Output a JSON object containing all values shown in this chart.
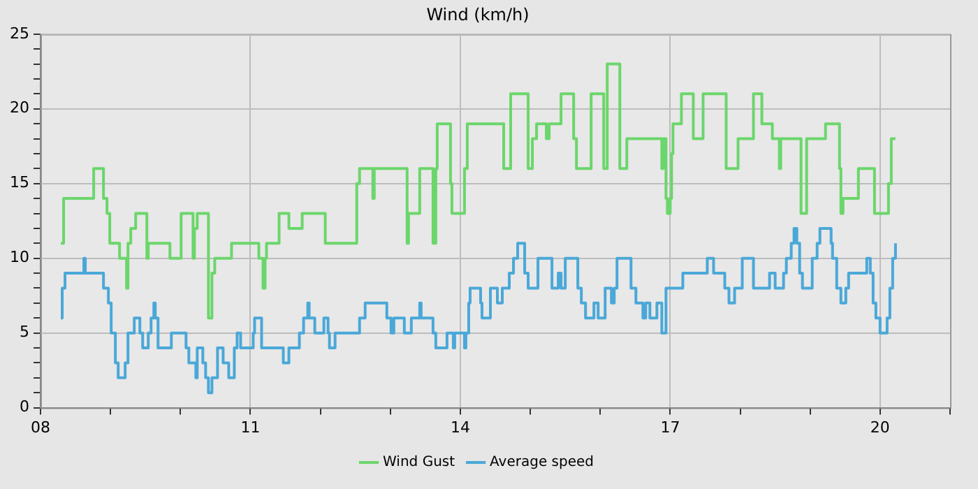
{
  "chart_data": {
    "type": "step",
    "title": "Wind (km/h)",
    "xlim": [
      8,
      21
    ],
    "xticks": [
      {
        "value": 8,
        "label": "08"
      },
      {
        "value": 9,
        "label": null
      },
      {
        "value": 10,
        "label": null
      },
      {
        "value": 11,
        "label": "11"
      },
      {
        "value": 12,
        "label": null
      },
      {
        "value": 13,
        "label": null
      },
      {
        "value": 14,
        "label": "14"
      },
      {
        "value": 15,
        "label": null
      },
      {
        "value": 16,
        "label": null
      },
      {
        "value": 17,
        "label": "17"
      },
      {
        "value": 18,
        "label": null
      },
      {
        "value": 19,
        "label": null
      },
      {
        "value": 20,
        "label": "20"
      },
      {
        "value": 21,
        "label": null
      }
    ],
    "ylim": [
      0,
      25
    ],
    "yticks": [
      0,
      {
        "value": 1,
        "label": null
      },
      {
        "value": 2,
        "label": null
      },
      {
        "value": 3,
        "label": null
      },
      {
        "value": 4,
        "label": null
      },
      5,
      {
        "value": 6,
        "label": null
      },
      {
        "value": 7,
        "label": null
      },
      {
        "value": 8,
        "label": null
      },
      {
        "value": 9,
        "label": null
      },
      10,
      {
        "value": 11,
        "label": null
      },
      {
        "value": 12,
        "label": null
      },
      {
        "value": 13,
        "label": null
      },
      {
        "value": 14,
        "label": null
      },
      15,
      {
        "value": 16,
        "label": null
      },
      {
        "value": 17,
        "label": null
      },
      {
        "value": 18,
        "label": null
      },
      {
        "value": 19,
        "label": null
      },
      20,
      {
        "value": 21,
        "label": null
      },
      {
        "value": 22,
        "label": null
      },
      {
        "value": 23,
        "label": null
      },
      {
        "value": 24,
        "label": null
      },
      25
    ],
    "grid": true,
    "legend": "bottom",
    "marker": "none",
    "line_style": "solid",
    "series": [
      {
        "name": "Wind Gust",
        "color": "#6bd66b",
        "x": [
          8.29,
          8.33,
          8.76,
          8.9,
          8.95,
          8.99,
          9.13,
          9.23,
          9.25,
          9.29,
          9.36,
          9.52,
          9.54,
          9.85,
          10.01,
          10.18,
          10.2,
          10.24,
          10.4,
          10.45,
          10.49,
          10.73,
          11.12,
          11.18,
          11.21,
          11.23,
          11.41,
          11.55,
          11.74,
          12.07,
          12.52,
          12.56,
          12.75,
          12.77,
          13.24,
          13.26,
          13.42,
          13.61,
          13.65,
          13.67,
          13.86,
          13.88,
          14.06,
          14.1,
          14.62,
          14.72,
          14.97,
          15.03,
          15.09,
          15.23,
          15.27,
          15.44,
          15.62,
          15.66,
          15.87,
          16.05,
          16.1,
          16.28,
          16.38,
          16.88,
          16.9,
          16.94,
          16.96,
          17.0,
          17.02,
          17.04,
          17.16,
          17.33,
          17.47,
          17.8,
          17.97,
          18.19,
          18.31,
          18.46,
          18.56,
          18.58,
          18.87,
          18.95,
          19.22,
          19.42,
          19.44,
          19.47,
          19.69,
          19.92,
          20.12,
          20.16,
          20.22
        ],
        "values": [
          11,
          14,
          16,
          14,
          13,
          11,
          10,
          8,
          11,
          12,
          13,
          10,
          11,
          10,
          13,
          10,
          12,
          13,
          6,
          9,
          10,
          11,
          10,
          8,
          10,
          11,
          13,
          12,
          13,
          11,
          15,
          16,
          14,
          16,
          11,
          13,
          16,
          11,
          16,
          19,
          15,
          13,
          16,
          19,
          16,
          21,
          16,
          18,
          19,
          18,
          19,
          21,
          18,
          16,
          21,
          16,
          23,
          16,
          18,
          16,
          18,
          14,
          13,
          14,
          17,
          19,
          21,
          18,
          21,
          16,
          18,
          21,
          19,
          18,
          16,
          18,
          13,
          18,
          19,
          16,
          13,
          14,
          16,
          13,
          15,
          18,
          18
        ]
      },
      {
        "name": "Average speed",
        "color": "#4aa8d8",
        "x": [
          8.29,
          8.31,
          8.35,
          8.62,
          8.64,
          8.9,
          8.97,
          9.01,
          9.07,
          9.11,
          9.21,
          9.25,
          9.34,
          9.42,
          9.46,
          9.54,
          9.58,
          9.62,
          9.64,
          9.68,
          9.87,
          10.08,
          10.12,
          10.22,
          10.24,
          10.32,
          10.36,
          10.4,
          10.45,
          10.53,
          10.61,
          10.69,
          10.77,
          10.81,
          10.86,
          11.04,
          11.06,
          11.16,
          11.47,
          11.55,
          11.7,
          11.76,
          11.82,
          11.84,
          11.92,
          12.05,
          12.11,
          12.13,
          12.21,
          12.56,
          12.64,
          12.95,
          13.01,
          13.05,
          13.2,
          13.3,
          13.42,
          13.44,
          13.61,
          13.65,
          13.81,
          13.9,
          13.92,
          14.06,
          14.08,
          14.12,
          14.14,
          14.29,
          14.31,
          14.43,
          14.53,
          14.6,
          14.7,
          14.76,
          14.82,
          14.92,
          14.97,
          15.11,
          15.31,
          15.4,
          15.44,
          15.5,
          15.68,
          15.73,
          15.79,
          15.91,
          15.97,
          16.07,
          16.16,
          16.2,
          16.24,
          16.44,
          16.51,
          16.61,
          16.65,
          16.71,
          16.81,
          16.88,
          16.94,
          17.18,
          17.53,
          17.62,
          17.78,
          17.84,
          17.92,
          18.03,
          18.19,
          18.42,
          18.5,
          18.62,
          18.66,
          18.73,
          18.77,
          18.81,
          18.85,
          18.89,
          19.03,
          19.1,
          19.14,
          19.3,
          19.32,
          19.38,
          19.44,
          19.51,
          19.55,
          19.81,
          19.86,
          19.9,
          19.94,
          20.0,
          20.1,
          20.14,
          20.18,
          20.22
        ],
        "values": [
          6,
          8,
          9,
          10,
          9,
          8,
          7,
          5,
          3,
          2,
          3,
          5,
          6,
          5,
          4,
          5,
          6,
          7,
          6,
          4,
          5,
          4,
          3,
          2,
          4,
          3,
          2,
          1,
          2,
          4,
          3,
          2,
          4,
          5,
          4,
          5,
          6,
          4,
          3,
          4,
          5,
          6,
          7,
          6,
          5,
          6,
          5,
          4,
          5,
          6,
          7,
          6,
          5,
          6,
          5,
          6,
          7,
          6,
          5,
          4,
          5,
          4,
          5,
          4,
          5,
          7,
          8,
          7,
          6,
          8,
          7,
          8,
          9,
          10,
          11,
          9,
          8,
          10,
          8,
          9,
          8,
          10,
          8,
          7,
          6,
          7,
          6,
          8,
          7,
          8,
          10,
          8,
          7,
          6,
          7,
          6,
          7,
          5,
          8,
          9,
          10,
          9,
          8,
          7,
          8,
          10,
          8,
          9,
          8,
          9,
          10,
          11,
          12,
          11,
          9,
          8,
          10,
          11,
          12,
          11,
          10,
          8,
          7,
          8,
          9,
          10,
          9,
          7,
          6,
          5,
          6,
          8,
          10,
          11
        ]
      }
    ]
  }
}
